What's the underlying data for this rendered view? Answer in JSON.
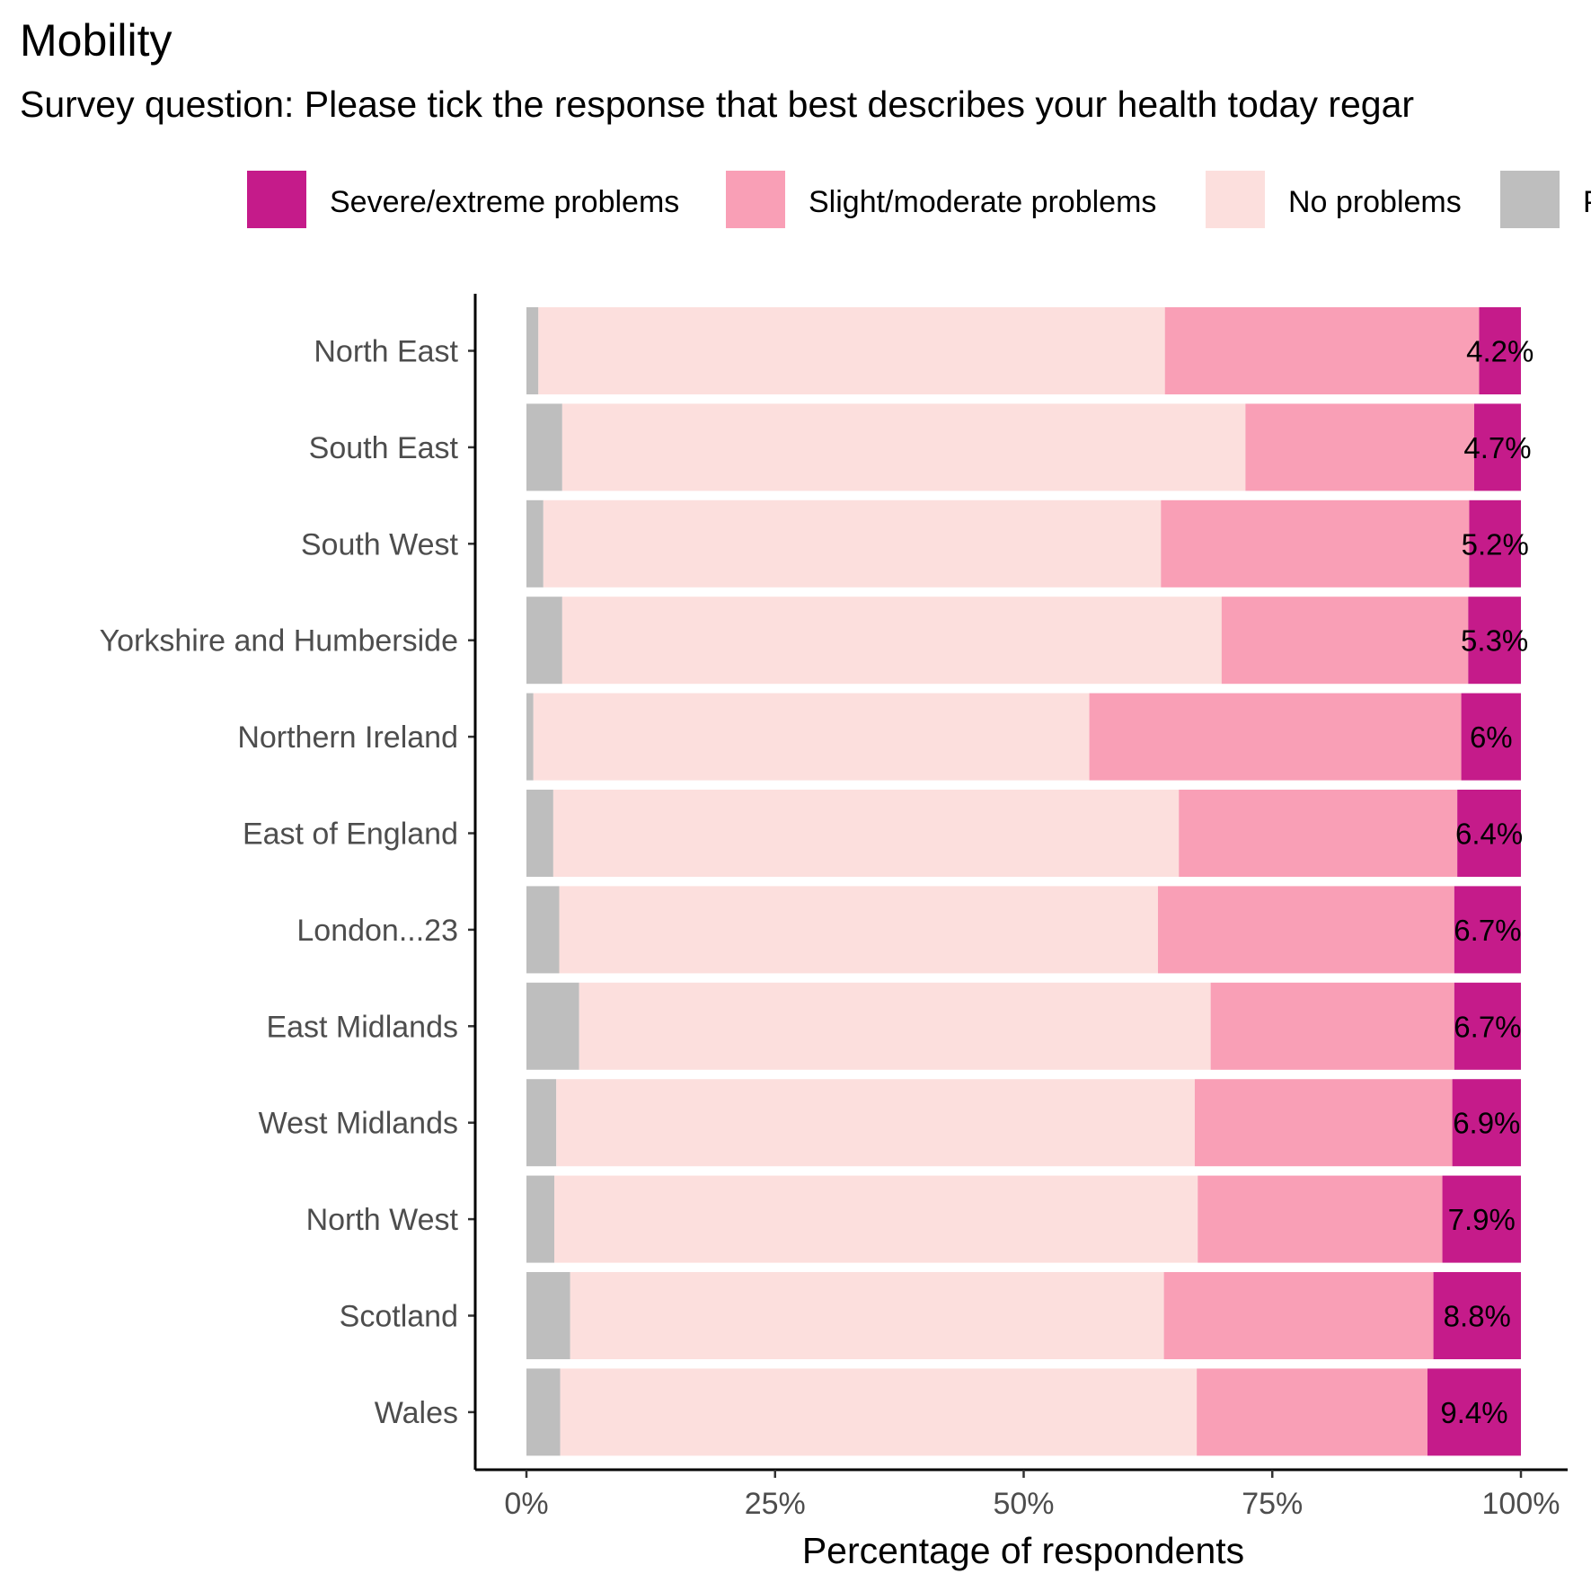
{
  "chart_data": {
    "type": "bar",
    "orientation": "horizontal",
    "stacked": true,
    "title": "Mobility",
    "subtitle": "Survey question: Please tick the response that best describes your health today regar",
    "xlabel": "Percentage of respondents",
    "ylabel": "",
    "xlim": [
      0,
      100
    ],
    "x_ticks": [
      "0%",
      "25%",
      "50%",
      "75%",
      "100%"
    ],
    "x_tick_values": [
      0,
      25,
      50,
      75,
      100
    ],
    "legend_position": "top",
    "legend_truncated_entry": "P",
    "grid": false,
    "categories": [
      "North East",
      "South East",
      "South West",
      "Yorkshire and Humberside",
      "Northern Ireland",
      "East of England",
      "London...23",
      "East Midlands",
      "West Midlands",
      "North West",
      "Scotland",
      "Wales"
    ],
    "series": [
      {
        "name": "P",
        "color": "#bebebe",
        "values": [
          1.2,
          3.6,
          1.7,
          3.6,
          0.7,
          2.7,
          3.3,
          5.3,
          3.0,
          2.8,
          4.4,
          3.4
        ]
      },
      {
        "name": "No problems",
        "color": "#fcdfdd",
        "values": [
          63.0,
          68.7,
          62.1,
          66.3,
          55.9,
          62.9,
          60.2,
          63.5,
          64.2,
          64.7,
          59.7,
          64.0
        ]
      },
      {
        "name": "Slight/moderate problems",
        "color": "#f99fb6",
        "values": [
          31.6,
          23.0,
          31.0,
          24.8,
          37.4,
          28.0,
          29.8,
          24.5,
          25.9,
          24.6,
          27.1,
          23.2
        ]
      },
      {
        "name": "Severe/extreme problems",
        "color": "#c51b8a",
        "values": [
          4.2,
          4.7,
          5.2,
          5.3,
          6.0,
          6.4,
          6.7,
          6.7,
          6.9,
          7.9,
          8.8,
          9.4
        ]
      }
    ],
    "data_labels": [
      "4.2%",
      "4.7%",
      "5.2%",
      "5.3%",
      "6%",
      "6.4%",
      "6.7%",
      "6.7%",
      "6.9%",
      "7.9%",
      "8.8%",
      "9.4%"
    ],
    "legend_entries": [
      "Severe/extreme problems",
      "Slight/moderate problems",
      "No problems",
      "P"
    ]
  }
}
